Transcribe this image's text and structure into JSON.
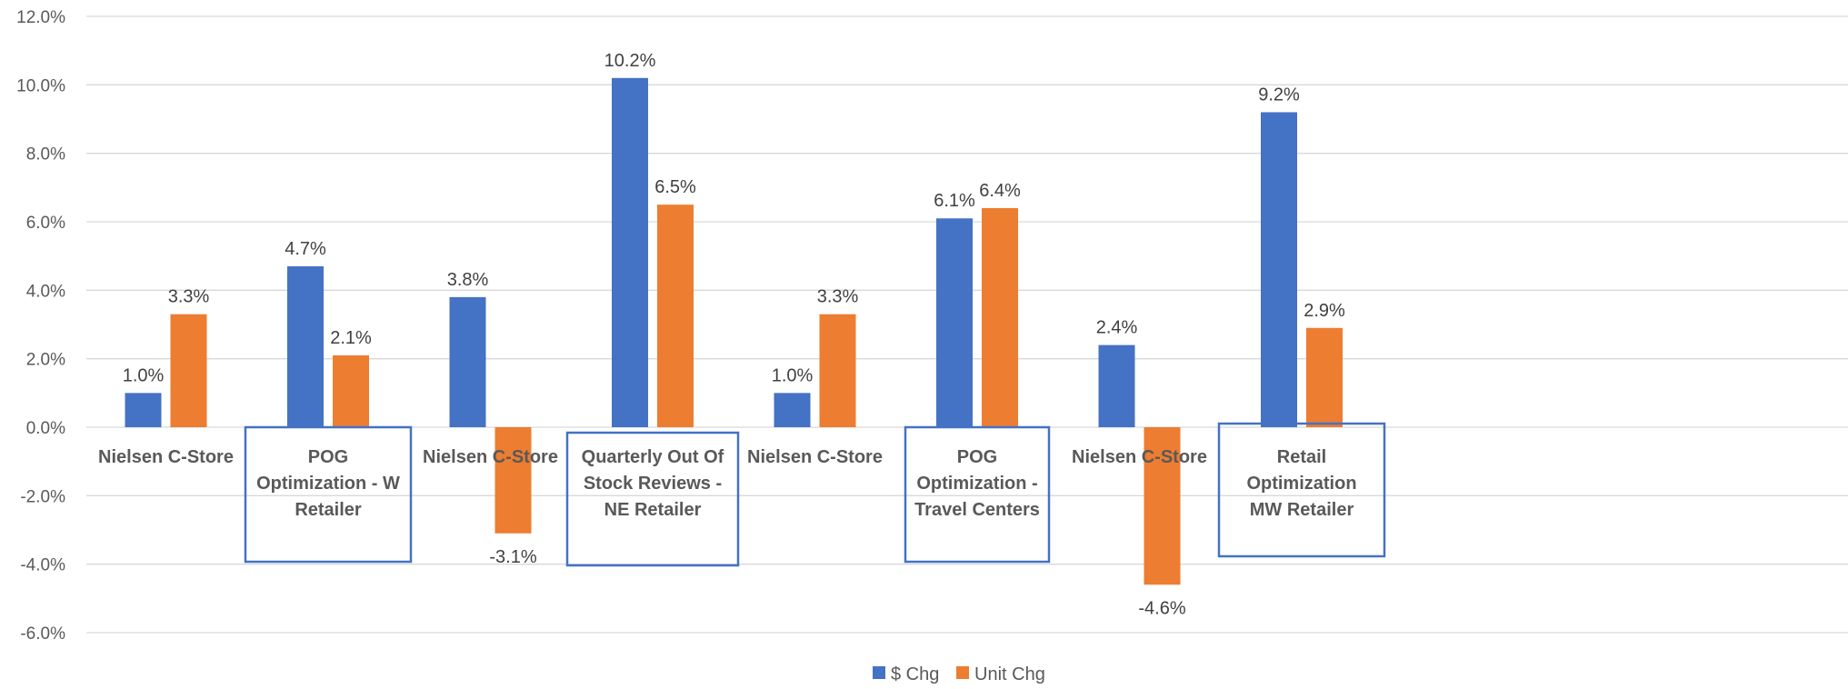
{
  "chart_data": {
    "type": "bar",
    "title": "",
    "xlabel": "",
    "ylabel": "",
    "ylim": [
      -6.0,
      12.0
    ],
    "yticks": [
      "12.0%",
      "10.0%",
      "8.0%",
      "6.0%",
      "4.0%",
      "2.0%",
      "0.0%",
      "-2.0%",
      "-4.0%",
      "-6.0%"
    ],
    "grid": true,
    "legend_position": "bottom",
    "categories": [
      "Nielsen C-Store",
      "POG Optimization - W Retailer",
      "Nielsen C-Store",
      "Quarterly Out Of Stock Reviews - NE Retailer",
      "Nielsen C-Store",
      "POG Optimization - Travel Centers",
      "Nielsen C-Store",
      "Retail Optimization - MW Retailer"
    ],
    "category_lines": [
      [
        "Nielsen C-Store"
      ],
      [
        "POG",
        "Optimization - W",
        "Retailer"
      ],
      [
        "Nielsen C-Store"
      ],
      [
        "Quarterly Out Of",
        "Stock Reviews -",
        "NE Retailer"
      ],
      [
        "Nielsen C-Store"
      ],
      [
        "POG",
        "Optimization -",
        "Travel Centers"
      ],
      [
        "Nielsen C-Store"
      ],
      [
        "Retail",
        "Optimization",
        "MW Retailer"
      ]
    ],
    "boxed_categories": [
      1,
      3,
      5,
      7
    ],
    "series": [
      {
        "name": "$ Chg",
        "color": "#4472C4",
        "values": [
          1.0,
          4.7,
          3.8,
          10.2,
          1.0,
          6.1,
          2.4,
          9.2
        ],
        "labels": [
          "1.0%",
          "4.7%",
          "3.8%",
          "10.2%",
          "1.0%",
          "6.1%",
          "2.4%",
          "9.2%"
        ]
      },
      {
        "name": "Unit Chg",
        "color": "#ED7D31",
        "values": [
          3.3,
          2.1,
          -3.1,
          6.5,
          3.3,
          6.4,
          -4.6,
          2.9
        ],
        "labels": [
          "3.3%",
          "2.1%",
          "-3.1%",
          "6.5%",
          "3.3%",
          "6.4%",
          "-4.6%",
          "2.9%"
        ]
      }
    ]
  }
}
